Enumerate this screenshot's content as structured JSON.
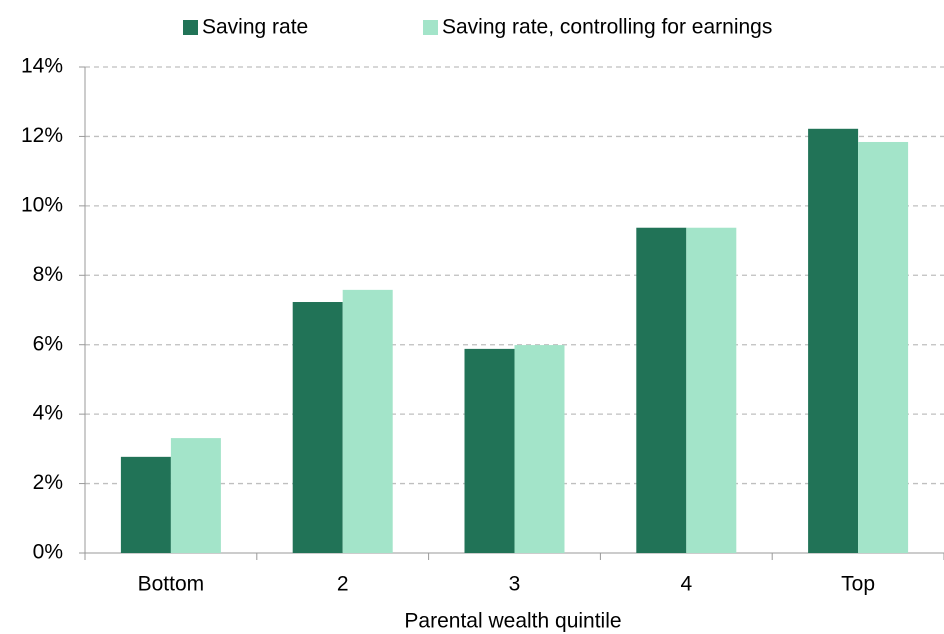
{
  "chart_data": {
    "type": "bar",
    "categories": [
      "Bottom",
      "2",
      "3",
      "4",
      "Top"
    ],
    "series": [
      {
        "name": "Saving rate",
        "color": "#217357",
        "values": [
          2.77,
          7.23,
          5.88,
          9.37,
          12.22
        ]
      },
      {
        "name": "Saving rate, controlling for earnings",
        "color": "#a3e4c9",
        "values": [
          3.31,
          7.58,
          5.99,
          9.37,
          11.84
        ]
      }
    ],
    "x_label": "Parental wealth quintile",
    "ylim": [
      0,
      14
    ],
    "yticks": [
      {
        "value": 0,
        "label": "0%"
      },
      {
        "value": 2,
        "label": "2%"
      },
      {
        "value": 4,
        "label": "4%"
      },
      {
        "value": 6,
        "label": "6%"
      },
      {
        "value": 8,
        "label": "8%"
      },
      {
        "value": 10,
        "label": "10%"
      },
      {
        "value": 12,
        "label": "12%"
      },
      {
        "value": 14,
        "label": "14%"
      }
    ],
    "grid": true,
    "legend": "top"
  }
}
